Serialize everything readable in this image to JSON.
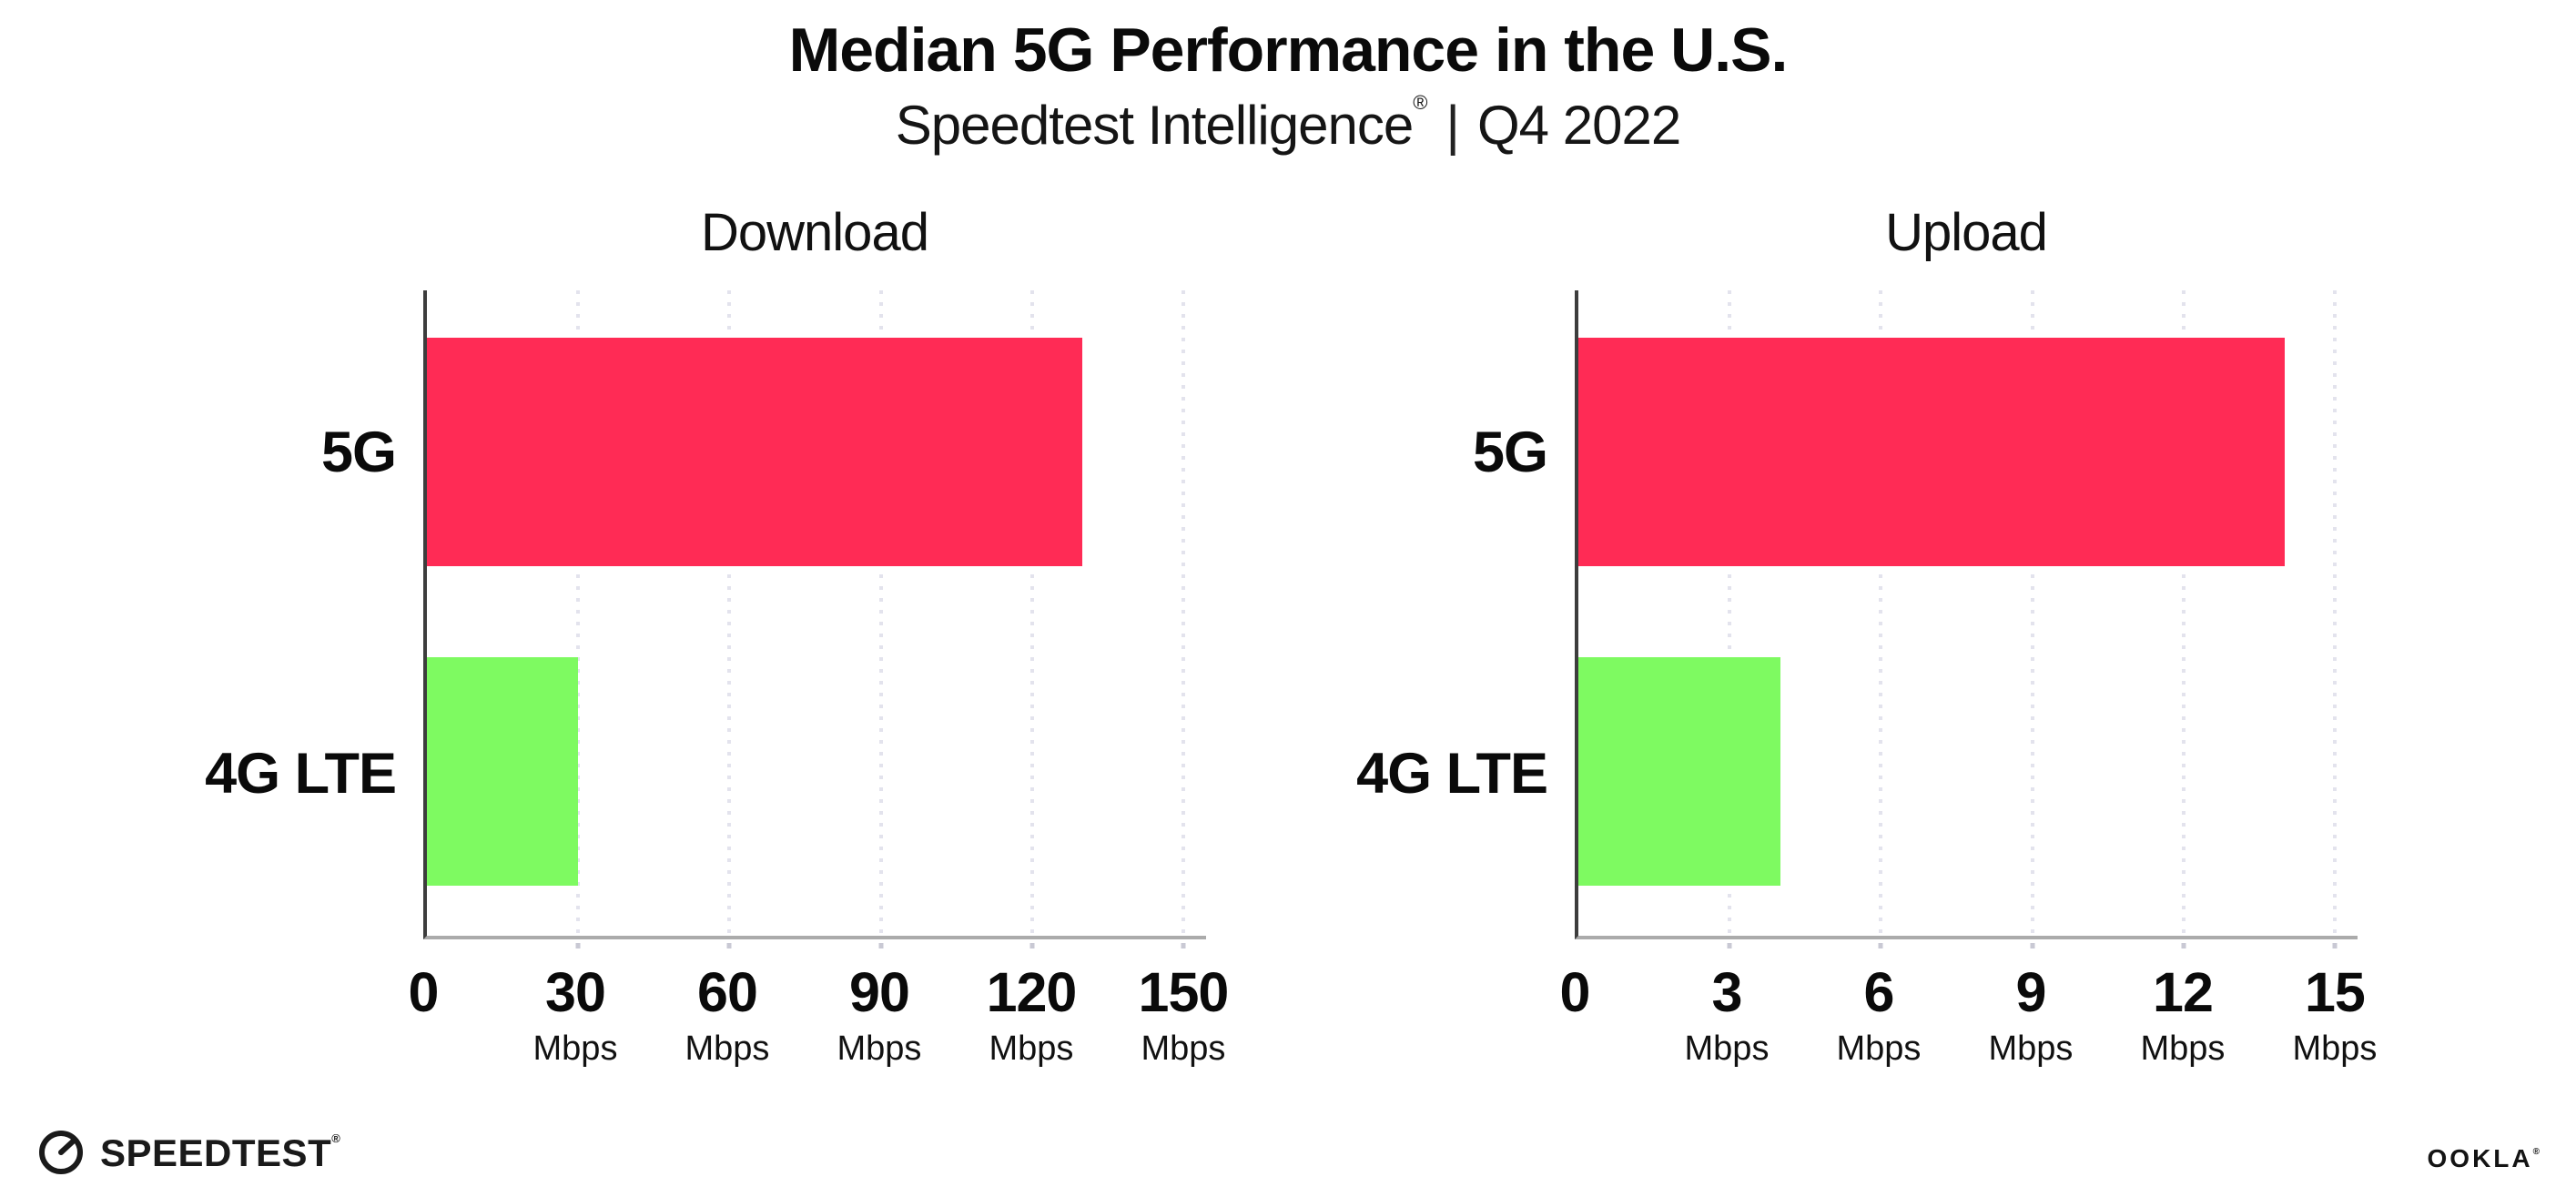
{
  "header": {
    "title": "Median 5G Performance in the U.S.",
    "subtitle_brand": "Speedtest Intelligence",
    "subtitle_reg": "®",
    "subtitle_separator": "|",
    "subtitle_period": "Q4 2022"
  },
  "chart_data": [
    {
      "type": "bar",
      "orientation": "horizontal",
      "title": "Download",
      "categories": [
        "5G",
        "4G LTE"
      ],
      "values": [
        130,
        30
      ],
      "unit": "Mbps",
      "xlim": [
        0,
        150
      ],
      "ticks": [
        0,
        30,
        60,
        90,
        120,
        150
      ],
      "tick_unit_label": "Mbps",
      "bar_colors": [
        "#FF2B55",
        "#7EFA61"
      ],
      "grid": "dotted-vertical",
      "legend": "none"
    },
    {
      "type": "bar",
      "orientation": "horizontal",
      "title": "Upload",
      "categories": [
        "5G",
        "4G LTE"
      ],
      "values": [
        14,
        4
      ],
      "unit": "Mbps",
      "xlim": [
        0,
        15
      ],
      "ticks": [
        0,
        3,
        6,
        9,
        12,
        15
      ],
      "tick_unit_label": "Mbps",
      "bar_colors": [
        "#FF2B55",
        "#7EFA61"
      ],
      "grid": "dotted-vertical",
      "legend": "none"
    }
  ],
  "footer": {
    "speedtest_label": "SPEEDTEST",
    "speedtest_reg": "®",
    "ookla_label": "OOKLA",
    "ookla_reg": "®"
  },
  "colors": {
    "bar_5g": "#FF2B55",
    "bar_4g_lte": "#7EFA61",
    "gridline": "#E3E3ED",
    "axis_x": "#ABABAB",
    "axis_y": "#3D3D3D",
    "text": "#0A0A0A"
  }
}
